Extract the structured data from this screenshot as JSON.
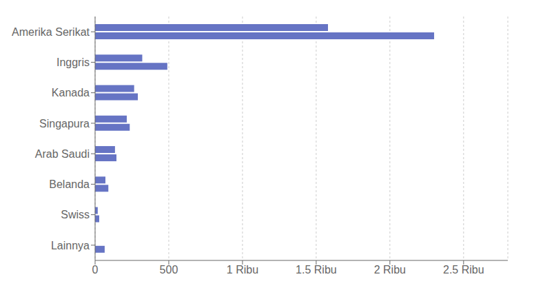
{
  "chart_data": {
    "type": "bar",
    "orientation": "horizontal",
    "categories": [
      "Amerika Serikat",
      "Inggris",
      "Kanada",
      "Singapura",
      "Arab Saudi",
      "Belanda",
      "Swiss",
      "Lainnya"
    ],
    "series": [
      {
        "color": "#6674C4",
        "values": [
          2300,
          490,
          290,
          235,
          145,
          90,
          28,
          65
        ]
      },
      {
        "color": "#6674C4",
        "values": [
          1580,
          320,
          265,
          215,
          135,
          70,
          18,
          0
        ]
      }
    ],
    "xlim": [
      0,
      2800
    ],
    "xticks": [
      0,
      500,
      {
        "value": 1000,
        "label": "1 Ribu"
      },
      {
        "value": 1500,
        "label": "1.5 Ribu"
      },
      {
        "value": 2000,
        "label": "2 Ribu"
      },
      {
        "value": 2500,
        "label": "2.5 Ribu"
      }
    ],
    "grid": true
  }
}
